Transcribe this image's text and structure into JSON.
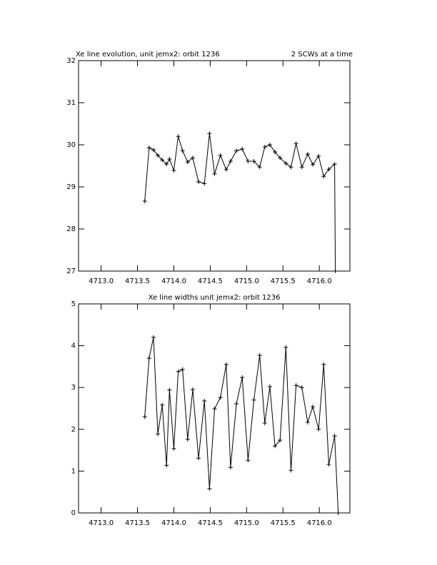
{
  "chart_data": [
    {
      "type": "line",
      "title": "Xe line evolution, unit jemx2: orbit 1236",
      "annotation": "2 SCWs at a time",
      "x": [
        4713.6,
        4713.66,
        4713.72,
        4713.78,
        4713.84,
        4713.9,
        4713.94,
        4714.0,
        4714.06,
        4714.12,
        4714.19,
        4714.26,
        4714.34,
        4714.42,
        4714.49,
        4714.56,
        4714.64,
        4714.72,
        4714.78,
        4714.86,
        4714.94,
        4715.02,
        4715.1,
        4715.18,
        4715.25,
        4715.32,
        4715.39,
        4715.46,
        4715.54,
        4715.61,
        4715.68,
        4715.76,
        4715.84,
        4715.91,
        4715.99,
        4716.06,
        4716.13,
        4716.21,
        4716.22
      ],
      "series": [
        {
          "color": "#000000",
          "values": [
            28.66,
            29.93,
            29.88,
            29.75,
            29.64,
            29.54,
            29.66,
            29.39,
            30.2,
            29.86,
            29.59,
            29.69,
            29.12,
            29.08,
            30.27,
            29.31,
            29.75,
            29.41,
            29.61,
            29.86,
            29.9,
            29.61,
            29.61,
            29.47,
            29.95,
            30.0,
            29.83,
            29.69,
            29.56,
            29.47,
            30.03,
            29.47,
            29.78,
            29.53,
            29.73,
            29.25,
            29.42,
            29.54,
            27
          ]
        }
      ],
      "xlim": [
        4712.69,
        4716.42
      ],
      "ylim": [
        27,
        32
      ],
      "xticks": [
        {
          "value": 4713,
          "label": "4713.0"
        },
        4713.5,
        {
          "value": 4714,
          "label": "4714.0"
        },
        4714.5,
        {
          "value": 4715,
          "label": "4715.0"
        },
        4715.5,
        {
          "value": 4716,
          "label": "4716.0"
        }
      ],
      "yticks": [
        27,
        28,
        29,
        30,
        31,
        32
      ]
    },
    {
      "type": "line",
      "title": "Xe line widths unit jemx2: orbit 1236",
      "x": [
        4713.6,
        4713.66,
        4713.72,
        4713.78,
        4713.84,
        4713.9,
        4713.94,
        4714.0,
        4714.06,
        4714.12,
        4714.19,
        4714.26,
        4714.34,
        4714.42,
        4714.49,
        4714.56,
        4714.64,
        4714.72,
        4714.78,
        4714.86,
        4714.94,
        4715.02,
        4715.1,
        4715.18,
        4715.25,
        4715.32,
        4715.39,
        4715.46,
        4715.54,
        4715.61,
        4715.68,
        4715.76,
        4715.84,
        4715.91,
        4715.99,
        4716.06,
        4716.13,
        4716.21,
        4716.26
      ],
      "series": [
        {
          "color": "#000000",
          "values": [
            2.3,
            3.7,
            4.2,
            1.89,
            2.58,
            1.14,
            2.94,
            1.54,
            3.38,
            3.43,
            1.76,
            2.95,
            1.31,
            2.68,
            0.58,
            2.49,
            2.76,
            3.55,
            1.09,
            2.61,
            3.24,
            1.26,
            2.7,
            3.77,
            2.15,
            3.02,
            1.6,
            1.74,
            3.96,
            1.02,
            3.05,
            3.0,
            2.17,
            2.54,
            2.0,
            3.55,
            1.16,
            1.84,
            0
          ]
        }
      ],
      "xlim": [
        4712.69,
        4716.42
      ],
      "ylim": [
        0,
        5
      ],
      "xticks": [
        {
          "value": 4713,
          "label": "4713.0"
        },
        4713.5,
        {
          "value": 4714,
          "label": "4714.0"
        },
        4714.5,
        {
          "value": 4715,
          "label": "4715.0"
        },
        4715.5,
        {
          "value": 4716,
          "label": "4716.0"
        }
      ],
      "yticks": [
        0,
        1,
        2,
        3,
        4,
        5
      ]
    }
  ]
}
